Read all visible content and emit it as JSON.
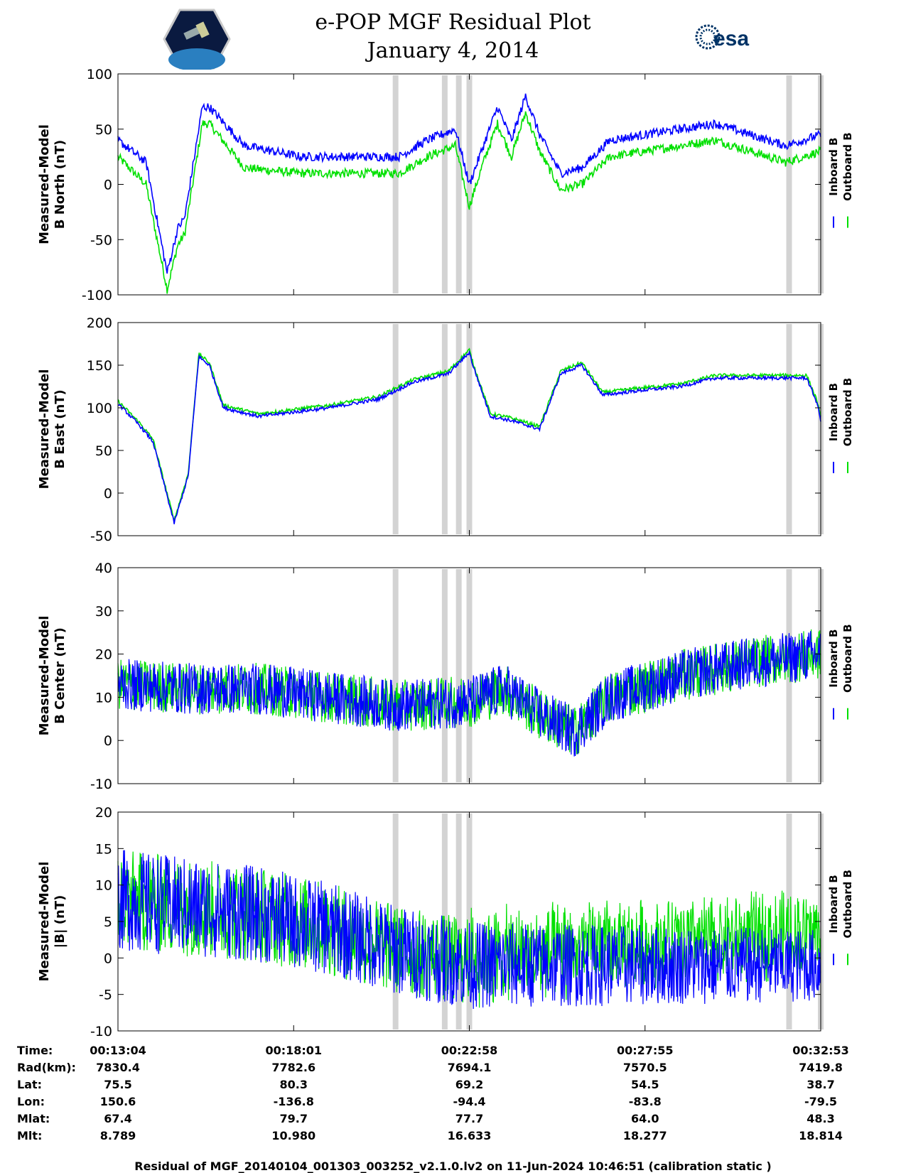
{
  "header": {
    "title": "e-POP MGF Residual Plot",
    "date": "January 4, 2014",
    "left_logo": "cassiope-mission-logo",
    "right_logo_text": "esa"
  },
  "chart_data": [
    {
      "type": "line",
      "ylabel_line1": "Measured-Model",
      "ylabel_line2": "B North (nT)",
      "ylim": [
        -100,
        100
      ],
      "yticks": [
        100,
        50,
        0,
        -50,
        -100
      ],
      "legend": [
        "Inboard B",
        "Outboard B"
      ],
      "series": [
        {
          "name": "Inboard B",
          "color": "#0000ff",
          "x": [
            0,
            0.04,
            0.07,
            0.085,
            0.095,
            0.12,
            0.13,
            0.18,
            0.26,
            0.36,
            0.4,
            0.44,
            0.48,
            0.5,
            0.52,
            0.54,
            0.56,
            0.58,
            0.6,
            0.63,
            0.66,
            0.7,
            0.75,
            0.8,
            0.85,
            0.9,
            0.95,
            1.0
          ],
          "values": [
            40,
            20,
            -80,
            -40,
            -30,
            70,
            70,
            35,
            25,
            25,
            25,
            40,
            50,
            0,
            35,
            70,
            40,
            80,
            45,
            10,
            15,
            40,
            45,
            50,
            55,
            45,
            35,
            45
          ]
        },
        {
          "name": "Outboard B",
          "color": "#00e000",
          "x": [
            0,
            0.04,
            0.07,
            0.085,
            0.095,
            0.12,
            0.13,
            0.18,
            0.26,
            0.36,
            0.4,
            0.44,
            0.48,
            0.5,
            0.52,
            0.54,
            0.56,
            0.58,
            0.6,
            0.63,
            0.66,
            0.7,
            0.75,
            0.8,
            0.85,
            0.9,
            0.95,
            1.0
          ],
          "values": [
            25,
            0,
            -95,
            -55,
            -45,
            55,
            55,
            15,
            10,
            10,
            10,
            25,
            35,
            -20,
            20,
            55,
            25,
            65,
            30,
            -5,
            0,
            25,
            30,
            35,
            40,
            30,
            20,
            30
          ]
        }
      ]
    },
    {
      "type": "line",
      "ylabel_line1": "Measured-Model",
      "ylabel_line2": "B East (nT)",
      "ylim": [
        -50,
        200
      ],
      "yticks": [
        200,
        150,
        100,
        50,
        0,
        -50
      ],
      "legend": [
        "Inboard B",
        "Outboard B"
      ],
      "series": [
        {
          "name": "Inboard B",
          "color": "#0000ff",
          "x": [
            0,
            0.03,
            0.05,
            0.08,
            0.1,
            0.115,
            0.13,
            0.15,
            0.2,
            0.3,
            0.37,
            0.42,
            0.47,
            0.5,
            0.505,
            0.53,
            0.56,
            0.6,
            0.63,
            0.66,
            0.69,
            0.74,
            0.8,
            0.85,
            0.92,
            0.98,
            0.995,
            1.0
          ],
          "values": [
            105,
            80,
            60,
            -35,
            20,
            160,
            150,
            100,
            90,
            100,
            110,
            130,
            140,
            165,
            150,
            90,
            85,
            75,
            140,
            150,
            115,
            120,
            125,
            135,
            135,
            135,
            105,
            85
          ]
        },
        {
          "name": "Outboard B",
          "color": "#00e000",
          "x": [
            0,
            0.03,
            0.05,
            0.08,
            0.1,
            0.115,
            0.13,
            0.15,
            0.2,
            0.3,
            0.37,
            0.42,
            0.47,
            0.5,
            0.505,
            0.53,
            0.56,
            0.6,
            0.63,
            0.66,
            0.69,
            0.74,
            0.8,
            0.85,
            0.92,
            0.98,
            0.995,
            1.0
          ],
          "values": [
            108,
            83,
            63,
            -32,
            23,
            163,
            153,
            103,
            93,
            103,
            113,
            133,
            143,
            168,
            153,
            93,
            88,
            78,
            143,
            153,
            118,
            123,
            128,
            138,
            138,
            138,
            108,
            88
          ]
        }
      ]
    },
    {
      "type": "line",
      "ylabel_line1": "Measured-Model",
      "ylabel_line2": "B Center (nT)",
      "ylim": [
        -10,
        40
      ],
      "yticks": [
        40,
        30,
        20,
        10,
        0,
        -10
      ],
      "legend": [
        "Inboard B",
        "Outboard B"
      ],
      "series": [
        {
          "name": "Inboard B",
          "color": "#0000ff",
          "x": [
            0,
            0.1,
            0.2,
            0.3,
            0.4,
            0.5,
            0.55,
            0.6,
            0.65,
            0.7,
            0.8,
            0.9,
            1.0
          ],
          "values": [
            13,
            12,
            12,
            10,
            8,
            9,
            12,
            6,
            2,
            10,
            15,
            18,
            20
          ]
        },
        {
          "name": "Outboard B",
          "color": "#00e000",
          "x": [
            0,
            0.1,
            0.2,
            0.3,
            0.4,
            0.5,
            0.55,
            0.6,
            0.65,
            0.7,
            0.8,
            0.9,
            1.0
          ],
          "values": [
            13,
            12,
            12,
            10,
            8,
            9,
            12,
            6,
            2,
            10,
            15,
            18,
            20
          ]
        }
      ]
    },
    {
      "type": "line",
      "ylabel_line1": "Measured-Model",
      "ylabel_line2": "|B| (nT)",
      "ylim": [
        -10,
        20
      ],
      "yticks": [
        20,
        15,
        10,
        5,
        0,
        -5,
        -10
      ],
      "legend": [
        "Inboard B",
        "Outboard B"
      ],
      "series": [
        {
          "name": "Inboard B",
          "color": "#0000ff",
          "x": [
            0,
            0.1,
            0.2,
            0.3,
            0.4,
            0.5,
            0.6,
            0.7,
            0.8,
            0.9,
            1.0
          ],
          "values": [
            8,
            7,
            6,
            4,
            1,
            -1,
            -1,
            -1,
            -1,
            -1,
            -1
          ]
        },
        {
          "name": "Outboard B",
          "color": "#00e000",
          "x": [
            0,
            0.1,
            0.2,
            0.3,
            0.4,
            0.5,
            0.6,
            0.7,
            0.8,
            0.9,
            1.0
          ],
          "values": [
            8,
            7,
            6,
            4,
            1,
            -0.5,
            0,
            1,
            1.5,
            2.5,
            3
          ]
        }
      ]
    }
  ],
  "gaps": [
    0.395,
    0.465,
    0.485,
    0.5,
    0.955,
    1.0
  ],
  "colors": {
    "inboard": "#0000ff",
    "outboard": "#00e000",
    "gap": "#d3d3d3"
  },
  "ephemeris": {
    "row_labels": [
      "Time:",
      "Rad(km):",
      "Lat:",
      "Lon:",
      "Mlat:",
      "Mlt:"
    ],
    "columns": [
      [
        "00:13:04",
        "7830.4",
        "75.5",
        "150.6",
        "67.4",
        "8.789"
      ],
      [
        "00:18:01",
        "7782.6",
        "80.3",
        "-136.8",
        "79.7",
        "10.980"
      ],
      [
        "00:22:58",
        "7694.1",
        "69.2",
        "-94.4",
        "77.7",
        "16.633"
      ],
      [
        "00:27:55",
        "7570.5",
        "54.5",
        "-83.8",
        "64.0",
        "18.277"
      ],
      [
        "00:32:53",
        "7419.8",
        "38.7",
        "-79.5",
        "48.3",
        "18.814"
      ]
    ]
  },
  "footer": "Residual of MGF_20140104_001303_003252_v2.1.0.lv2 on 11-Jun-2024 10:46:51 (calibration static )"
}
